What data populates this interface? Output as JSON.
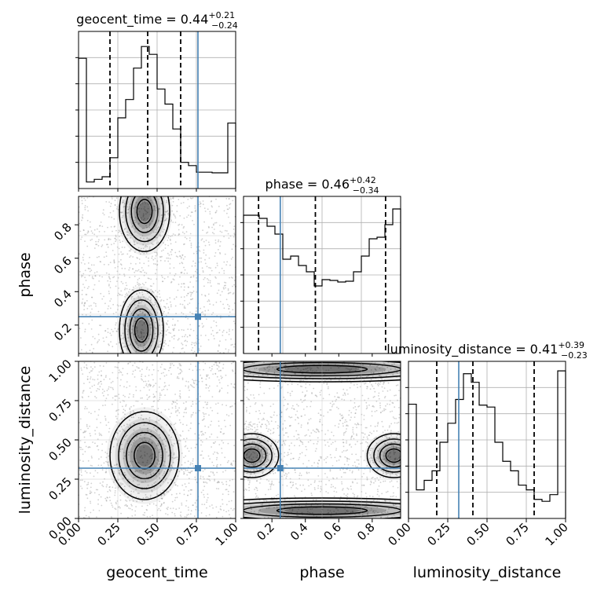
{
  "colors": {
    "truth": "#4682b4",
    "hist": "#000000",
    "grid": "#b0b0b0",
    "quantile": "#000000"
  },
  "chart_data": {
    "type": "corner",
    "parameters": [
      "geocent_time",
      "phase",
      "luminosity_distance"
    ],
    "truths": {
      "geocent_time": 0.76,
      "phase": 0.25,
      "luminosity_distance": 0.32
    },
    "grid": true,
    "marginals": [
      {
        "param": "geocent_time",
        "title": "geocent_time = 0.44",
        "sup": "+0.21",
        "sub": "−0.24",
        "quantiles": [
          0.2,
          0.44,
          0.65
        ],
        "xlim": [
          0,
          1
        ],
        "bins": [
          0.0,
          0.05,
          0.1,
          0.15,
          0.2,
          0.25,
          0.3,
          0.35,
          0.4,
          0.45,
          0.5,
          0.55,
          0.6,
          0.65,
          0.7,
          0.75,
          0.8,
          0.85,
          0.9,
          0.95,
          1.0
        ],
        "counts": [
          995,
          50,
          70,
          90,
          235,
          540,
          680,
          920,
          1085,
          1025,
          760,
          645,
          455,
          200,
          175,
          125,
          125,
          120,
          120,
          500
        ],
        "ymax": 1200
      },
      {
        "param": "phase",
        "title": "phase = 0.46",
        "sup": "+0.42",
        "sub": "−0.34",
        "quantiles": [
          0.12,
          0.46,
          0.88
        ],
        "xlim": [
          0.03,
          0.97
        ],
        "bins": [
          0.03,
          0.077,
          0.124,
          0.171,
          0.218,
          0.265,
          0.312,
          0.359,
          0.406,
          0.453,
          0.5,
          0.547,
          0.594,
          0.641,
          0.688,
          0.735,
          0.782,
          0.829,
          0.876,
          0.923,
          0.97
        ],
        "counts": [
          880,
          880,
          860,
          810,
          760,
          600,
          620,
          560,
          520,
          430,
          470,
          465,
          455,
          460,
          520,
          620,
          730,
          740,
          820,
          920
        ],
        "ymax": 1000
      },
      {
        "param": "luminosity_distance",
        "title": "luminosity_distance = 0.41",
        "sup": "+0.39",
        "sub": "−0.23",
        "quantiles": [
          0.18,
          0.41,
          0.8
        ],
        "xlim": [
          0,
          1
        ],
        "bins": [
          0.0,
          0.05,
          0.1,
          0.15,
          0.2,
          0.25,
          0.3,
          0.35,
          0.4,
          0.45,
          0.5,
          0.55,
          0.6,
          0.65,
          0.7,
          0.75,
          0.8,
          0.85,
          0.9,
          0.95,
          1.0
        ],
        "counts": [
          1200,
          300,
          400,
          500,
          800,
          1000,
          1250,
          1520,
          1430,
          1190,
          1170,
          800,
          600,
          500,
          350,
          300,
          200,
          180,
          250,
          1550
        ],
        "ymax": 1650
      }
    ],
    "joints": [
      {
        "x": "geocent_time",
        "y": "phase",
        "density_blobs": [
          [
            0.42,
            0.88,
            0.08,
            0.12
          ],
          [
            0.4,
            0.17,
            0.07,
            0.12
          ]
        ]
      },
      {
        "x": "geocent_time",
        "y": "luminosity_distance",
        "density_blobs": [
          [
            0.42,
            0.4,
            0.11,
            0.14
          ]
        ]
      },
      {
        "x": "phase",
        "y": "luminosity_distance",
        "density_blobs": [
          [
            0.08,
            0.4,
            0.08,
            0.07
          ],
          [
            0.93,
            0.4,
            0.08,
            0.07
          ],
          [
            0.5,
            0.95,
            0.45,
            0.04
          ],
          [
            0.5,
            0.05,
            0.45,
            0.04
          ]
        ]
      }
    ],
    "axes": {
      "geocent_time": {
        "label": "geocent_time",
        "lim": [
          0,
          1
        ],
        "ticks": [
          "0.00",
          "0.25",
          "0.50",
          "0.75",
          "1.00"
        ]
      },
      "phase": {
        "label": "phase",
        "lim": [
          0.03,
          0.97
        ],
        "ticks": [
          "0.2",
          "0.4",
          "0.6",
          "0.8"
        ]
      },
      "luminosity_distance": {
        "label": "luminosity_distance",
        "lim": [
          0,
          1
        ],
        "ticks": [
          "0.00",
          "0.25",
          "0.50",
          "0.75",
          "1.00"
        ]
      }
    }
  }
}
